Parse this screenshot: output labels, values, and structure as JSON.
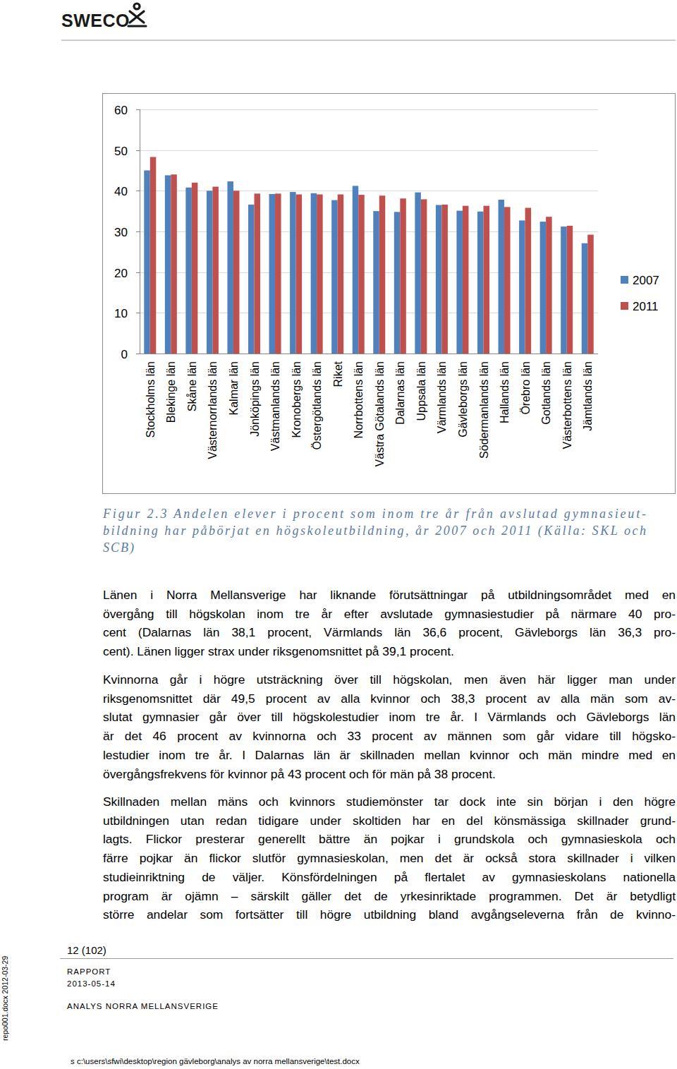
{
  "header": {
    "logo": "SWECO"
  },
  "chart_data": {
    "type": "bar",
    "categories": [
      "Stockholms län",
      "Blekinge län",
      "Skåne län",
      "Västernorrlands län",
      "Kalmar län",
      "Jönköpings län",
      "Västmanlands län",
      "Kronobergs län",
      "Östergötlands län",
      "Riket",
      "Norrbottens län",
      "Västra Götalands län",
      "Dalarnas län",
      "Uppsala län",
      "Värmlands län",
      "Gävleborgs län",
      "Södermanlands län",
      "Hallands län",
      "Örebro län",
      "Gotlands län",
      "Västerbottens län",
      "Jämtlands län"
    ],
    "series": [
      {
        "name": "2007",
        "color": "#4f81bd",
        "values": [
          45.0,
          43.8,
          40.8,
          40.0,
          42.3,
          36.6,
          39.2,
          39.7,
          39.4,
          37.7,
          41.2,
          35.0,
          34.8,
          39.6,
          36.5,
          35.1,
          34.9,
          37.8,
          32.7,
          32.4,
          31.2,
          27.1
        ]
      },
      {
        "name": "2011",
        "color": "#c0504d",
        "values": [
          48.3,
          44.0,
          42.0,
          41.0,
          40.0,
          39.3,
          39.3,
          39.1,
          39.1,
          39.1,
          39.0,
          38.8,
          38.1,
          37.9,
          36.6,
          36.3,
          36.3,
          36.0,
          35.8,
          33.6,
          31.4,
          29.2
        ]
      }
    ],
    "ylim": [
      0,
      60
    ],
    "yticks": [
      0,
      10,
      20,
      30,
      40,
      50,
      60
    ],
    "grid": true,
    "legend": "right"
  },
  "caption": {
    "lines": [
      "Figur 2.3 Andelen elever i procent som inom tre år från avslutad gymnasieut-",
      "bildning har påbörjat en högskoleutbildning, år 2007 och 2011 (Källa: SKL och",
      "SCB)"
    ]
  },
  "body": {
    "paragraphs": [
      [
        "Länen i Norra Mellansverige har liknande förutsättningar på utbildningsområdet med en",
        "övergång till högskolan inom tre år efter avslutade gymnasiestudier på närmare 40 pro-",
        "cent (Dalarnas län 38,1 procent, Värmlands län 36,6 procent, Gävleborgs län 36,3 pro-",
        "cent). Länen ligger strax under riksgenomsnittet på 39,1 procent."
      ],
      [
        "Kvinnorna går i högre utsträckning över till högskolan, men även här ligger man under",
        "riksgenomsnittet där 49,5 procent av alla kvinnor och 38,3 procent av alla män som av-",
        "slutat gymnasier går över till högskolestudier inom tre år. I Värmlands och Gävleborgs län",
        "är det 46 procent av kvinnorna och 33 procent av männen som går vidare till högsko-",
        "lestudier inom tre år. I Dalarnas län är skillnaden mellan kvinnor och män mindre med en",
        "övergångsfrekvens för kvinnor på 43 procent och för män på 38 procent."
      ],
      [
        "Skillnaden mellan mäns och kvinnors studiemönster tar dock inte sin början i den högre",
        "utbildningen utan redan tidigare under skoltiden har en del könsmässiga skillnader grund-",
        "lagts. Flickor presterar generellt bättre än pojkar i grundskola och gymnasieskola och",
        "färre pojkar än flickor slutför gymnasieskolan, men det är också stora skillnader i vilken",
        "studieinriktning de väljer. Könsfördelningen på flertalet av gymnasieskolans nationella",
        "program är ojämn – särskilt gäller det de yrkesinriktade programmen. Det är betydligt",
        "större andelar som fortsätter till högre utbildning bland avgångseleverna från de kvinno-"
      ]
    ]
  },
  "footer": {
    "page": "12 (102)",
    "doc_type": "RAPPORT",
    "date": "2013-05-14",
    "title": "ANALYS NORRA MELLANSVERIGE",
    "side_note": "repo001.docx 2012-03-29",
    "path": "s c:\\users\\sfwi\\desktop\\region gävleborg\\analys av norra mellansverige\\test.docx"
  }
}
